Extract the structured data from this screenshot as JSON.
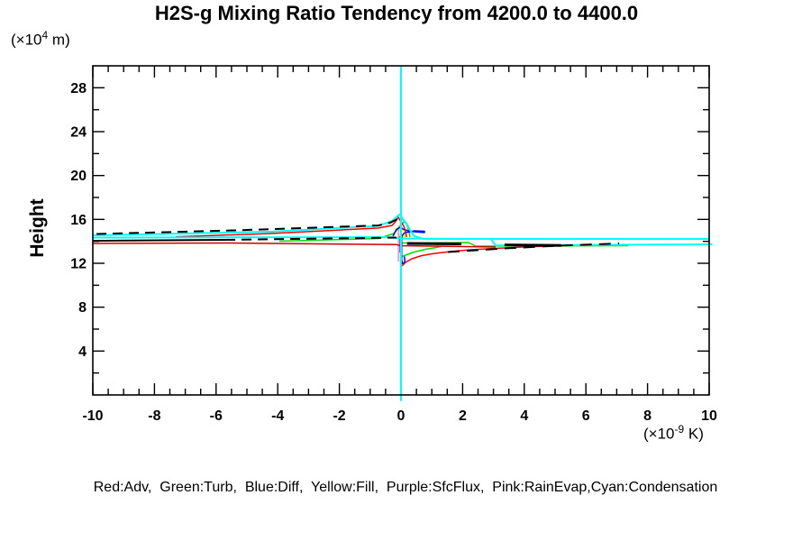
{
  "title": "H2S-g Mixing Ratio Tendency from 4200.0 to 4400.0",
  "axes": {
    "ylabel": "Height",
    "y_unit": {
      "pre": "(×10",
      "sup": "4",
      "post": " m)"
    },
    "x_unit": {
      "pre": "(×10",
      "sup": "-9",
      "post": " K)"
    }
  },
  "legend": "Red:Adv,  Green:Turb,  Blue:Diff,  Yellow:Fill,  Purple:SfcFlux,  Pink:RainEvap,Cyan:Condensation",
  "legend_key": {
    "Red": "Adv",
    "Green": "Turb",
    "Blue": "Diff",
    "Yellow": "Fill",
    "Purple": "SfcFlux",
    "Pink": "RainEvap",
    "Cyan": "Condensation"
  },
  "colors": {
    "red": "#ff0000",
    "dark_red": "#cc0000",
    "green": "#00dd00",
    "blue": "#0000ff",
    "yellow": "#ffff00",
    "purple": "#9932cc",
    "pink": "#dda0dd",
    "cyan": "#00ffff",
    "black": "#000000"
  },
  "chart_data": {
    "type": "line",
    "title": "H2S-g Mixing Ratio Tendency from 4200.0 to 4400.0",
    "xlabel": "(x10^-9 K)",
    "ylabel": "Height (x10^4 m)",
    "xlim": [
      -10,
      10
    ],
    "ylim": [
      0,
      30
    ],
    "x_ticks": [
      -10,
      -8,
      -6,
      -4,
      -2,
      0,
      2,
      4,
      6,
      8,
      10
    ],
    "x_minor_step": 0.5,
    "y_ticks": [
      4,
      8,
      12,
      16,
      20,
      24,
      28
    ],
    "y_minor_step": 2,
    "grid": false,
    "legend_position": "bottom-text",
    "series": [
      {
        "id": "fill-yellow-1",
        "component": "Fill",
        "color": "#ffff00",
        "width": 4,
        "dash": null,
        "points": [
          [
            -0.18,
            15.08
          ],
          [
            0.06,
            15.08
          ]
        ]
      },
      {
        "id": "fill-yellow-2",
        "component": "Fill",
        "color": "#ffff00",
        "width": 4,
        "dash": null,
        "points": [
          [
            -0.12,
            14.47
          ],
          [
            0.15,
            14.47
          ]
        ]
      },
      {
        "id": "sfcflux-purple",
        "component": "SfcFlux",
        "color": "#9932cc",
        "width": 1.5,
        "dash": null,
        "points": [
          [
            -0.04,
            14.47
          ],
          [
            -0.04,
            12.99
          ]
        ]
      },
      {
        "id": "rainevap-pink",
        "component": "RainEvap",
        "color": "#dda0dd",
        "width": 2,
        "dash": null,
        "points": [
          [
            -0.08,
            15.29
          ],
          [
            -0.08,
            12.16
          ]
        ]
      },
      {
        "id": "turb-green-left-peak",
        "component": "Turb",
        "color": "#00dd00",
        "width": 1.5,
        "dash": null,
        "points": [
          [
            -3.95,
            14.01
          ],
          [
            -0.73,
            14.26
          ],
          [
            -0.23,
            14.71
          ],
          [
            -0.06,
            15.29
          ],
          [
            0.03,
            15.62
          ],
          [
            0.12,
            15.82
          ],
          [
            0.2,
            15.45
          ],
          [
            0.26,
            14.88
          ],
          [
            0.29,
            14.38
          ]
        ]
      },
      {
        "id": "turb-green-right",
        "component": "Turb",
        "color": "#00dd00",
        "width": 1.5,
        "dash": null,
        "points": [
          [
            0,
            13.85
          ],
          [
            2.19,
            13.89
          ],
          [
            2.43,
            13.56
          ],
          [
            7.37,
            13.6
          ]
        ]
      },
      {
        "id": "turb-green-lower",
        "component": "Turb",
        "color": "#00dd00",
        "width": 1.5,
        "dash": null,
        "points": [
          [
            0.03,
            12.62
          ],
          [
            0.38,
            12.99
          ],
          [
            0.79,
            13.27
          ],
          [
            1.14,
            13.44
          ],
          [
            1.32,
            13.54
          ]
        ]
      },
      {
        "id": "diff-blue-upper-bump",
        "component": "Diff",
        "color": "#0000ff",
        "width": 1.5,
        "dash": null,
        "points": [
          [
            -0.26,
            14.47
          ],
          [
            -0.15,
            15.08
          ],
          [
            -0.03,
            15.29
          ],
          [
            0.09,
            15.08
          ],
          [
            0.29,
            14.92
          ],
          [
            0.55,
            14.84
          ],
          [
            0.76,
            14.8
          ],
          [
            0.76,
            14.92
          ],
          [
            0.44,
            14.96
          ],
          [
            0.12,
            14.79
          ],
          [
            0.03,
            14.51
          ],
          [
            0.03,
            14.26
          ]
        ]
      },
      {
        "id": "diff-blue-lower-spike",
        "component": "Diff",
        "color": "#0000ff",
        "width": 1.5,
        "dash": null,
        "points": [
          [
            0.02,
            14.22
          ],
          [
            0.02,
            12.33
          ],
          [
            0.05,
            11.96
          ],
          [
            0.13,
            12.12
          ],
          [
            0.11,
            12.62
          ]
        ]
      },
      {
        "id": "adv-red-upper",
        "component": "Adv",
        "color": "#ff0000",
        "width": 1.5,
        "dash": null,
        "points": [
          [
            -7.31,
            14.42
          ],
          [
            -4.24,
            14.71
          ],
          [
            -0.73,
            15.21
          ],
          [
            -0.29,
            15.45
          ],
          [
            -0.18,
            15.78
          ],
          [
            -0.09,
            16.21
          ],
          [
            0,
            15.78
          ],
          [
            0.09,
            15.37
          ],
          [
            0.15,
            14.88
          ],
          [
            0.18,
            14.38
          ]
        ]
      },
      {
        "id": "adv-red-low-left",
        "component": "Adv",
        "color": "#cc0000",
        "width": 1.5,
        "dash": null,
        "points": [
          [
            -10,
            13.81
          ],
          [
            -5.7,
            13.85
          ],
          [
            -0.15,
            13.7
          ],
          [
            0,
            13.6
          ],
          [
            3.07,
            13.48
          ]
        ]
      },
      {
        "id": "adv-red-sweep",
        "component": "Adv",
        "color": "#ff0000",
        "width": 1.5,
        "dash": null,
        "points": [
          [
            0.03,
            11.75
          ],
          [
            0.15,
            12.08
          ],
          [
            0.35,
            12.41
          ],
          [
            0.67,
            12.7
          ],
          [
            1.08,
            12.9
          ],
          [
            1.61,
            13.07
          ],
          [
            2.25,
            13.23
          ],
          [
            3.07,
            13.36
          ],
          [
            3.95,
            13.48
          ],
          [
            4.82,
            13.57
          ],
          [
            5.5,
            13.64
          ]
        ]
      },
      {
        "id": "condensation-cyan-upper",
        "component": "Condensation",
        "color": "#00ffff",
        "width": 2,
        "dash": null,
        "points": [
          [
            -10,
            14.55
          ],
          [
            -4.24,
            14.88
          ],
          [
            -0.73,
            15.41
          ],
          [
            -0.29,
            15.86
          ],
          [
            -0.12,
            16.27
          ],
          [
            -0.03,
            16.48
          ],
          [
            0.06,
            16.03
          ],
          [
            0.18,
            15.62
          ],
          [
            0.29,
            15.04
          ],
          [
            0.44,
            14.47
          ],
          [
            0.73,
            14.22
          ],
          [
            3.74,
            14.22
          ],
          [
            10,
            14.22
          ]
        ]
      },
      {
        "id": "condensation-cyan-lower",
        "component": "Condensation",
        "color": "#00ffff",
        "width": 2,
        "dash": null,
        "points": [
          [
            -10,
            14.34
          ],
          [
            -0.44,
            14.38
          ],
          [
            0,
            14.26
          ],
          [
            2.92,
            14.22
          ],
          [
            3.07,
            13.62
          ],
          [
            6,
            13.68
          ],
          [
            10.1,
            13.73
          ]
        ]
      },
      {
        "id": "black-dash-upper",
        "component": "overlay",
        "color": "#000000",
        "width": 2,
        "dash": [
          11,
          7
        ],
        "points": [
          [
            -9.88,
            14.67
          ],
          [
            -5.41,
            15.0
          ],
          [
            -0.73,
            15.45
          ],
          [
            -0.35,
            15.7
          ],
          [
            -0.12,
            16.03
          ]
        ]
      },
      {
        "id": "black-mid-solid-left",
        "component": "overlay",
        "color": "#000000",
        "width": 2,
        "dash": null,
        "points": [
          [
            -10,
            14.05
          ],
          [
            -5.7,
            14.14
          ]
        ]
      },
      {
        "id": "black-mid-dash",
        "component": "overlay",
        "color": "#000000",
        "width": 2,
        "dash": [
          11,
          7
        ],
        "points": [
          [
            -5.7,
            14.14
          ],
          [
            -0.15,
            14.34
          ]
        ]
      },
      {
        "id": "black-right-solid-1",
        "component": "overlay",
        "color": "#000000",
        "width": 3,
        "dash": null,
        "points": [
          [
            0.2,
            13.81
          ],
          [
            1.96,
            13.77
          ]
        ]
      },
      {
        "id": "black-right-solid-2",
        "component": "overlay",
        "color": "#000000",
        "width": 3,
        "dash": null,
        "points": [
          [
            3.36,
            13.68
          ],
          [
            5.2,
            13.62
          ]
        ]
      },
      {
        "id": "black-dash-sweep",
        "component": "overlay",
        "color": "#000000",
        "width": 2,
        "dash": [
          13,
          8
        ],
        "points": [
          [
            1.52,
            13.03
          ],
          [
            3.36,
            13.36
          ],
          [
            5.12,
            13.6
          ],
          [
            7.08,
            13.81
          ]
        ]
      },
      {
        "id": "condensation-zero-line",
        "component": "Condensation",
        "color": "#00ffff",
        "width": 2,
        "dash": null,
        "points": [
          [
            0,
            30
          ],
          [
            0,
            -0.55
          ]
        ]
      }
    ]
  }
}
